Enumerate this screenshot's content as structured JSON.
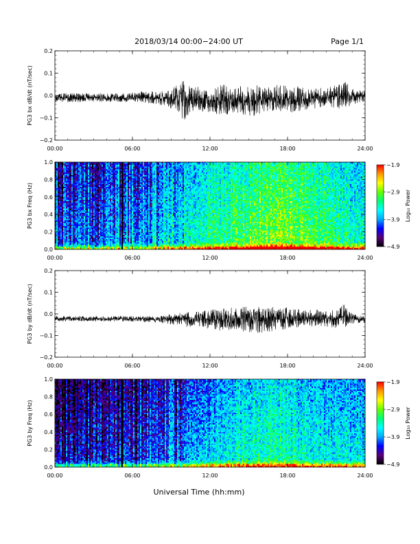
{
  "header": {
    "title": "2018/03/14  00:00−24:00 UT",
    "page_label": "Page 1/1"
  },
  "footer": {
    "xlabel": "Universal Time (hh:mm)"
  },
  "chart_data": [
    {
      "type": "line",
      "ylabel": "PG3 bx dB/dt (nT/sec)",
      "xlim": [
        0,
        24
      ],
      "ylim": [
        -0.2,
        0.2
      ],
      "yticks": [
        "0.2",
        "0.1",
        "0.0",
        "−0.1",
        "−0.2"
      ],
      "xticks": [
        "00:00",
        "06:00",
        "12:00",
        "18:00",
        "24:00"
      ],
      "envelope": {
        "hours": [
          0,
          2,
          4,
          6,
          7,
          8,
          9,
          9.5,
          10,
          10.5,
          11,
          12,
          13,
          14,
          15,
          16,
          17,
          18,
          19,
          20,
          21,
          22,
          22.5,
          23,
          24
        ],
        "upper": [
          0.01,
          0.01,
          0.01,
          0.012,
          0.02,
          0.015,
          0.03,
          0.06,
          0.07,
          0.04,
          0.04,
          0.035,
          0.05,
          0.04,
          0.05,
          0.045,
          0.05,
          0.045,
          0.04,
          0.035,
          0.035,
          0.05,
          0.06,
          0.03,
          0.02
        ],
        "lower": [
          -0.03,
          -0.03,
          -0.03,
          -0.03,
          -0.035,
          -0.04,
          -0.06,
          -0.09,
          -0.11,
          -0.08,
          -0.07,
          -0.08,
          -0.09,
          -0.08,
          -0.1,
          -0.08,
          -0.07,
          -0.08,
          -0.07,
          -0.06,
          -0.05,
          -0.06,
          -0.06,
          -0.04,
          -0.03
        ]
      }
    },
    {
      "type": "heatmap",
      "ylabel": "PG3 bx Freq (Hz)",
      "xlim": [
        0,
        24
      ],
      "ylim": [
        0,
        1
      ],
      "yticks": [
        "1.0",
        "0.8",
        "0.6",
        "0.4",
        "0.2",
        "0.0"
      ],
      "xticks": [
        "00:00",
        "06:00",
        "12:00",
        "18:00",
        "24:00"
      ],
      "colorbar": {
        "label": "Log₁₀ Power",
        "ticks": [
          "−1.9",
          "−2.9",
          "−3.9",
          "−4.9"
        ],
        "colors": [
          "#000000",
          "#5a007a",
          "#0000ff",
          "#00aaff",
          "#00ffff",
          "#00ff77",
          "#66ff00",
          "#ffff00",
          "#ff9900",
          "#ff0000"
        ]
      },
      "gap_hour": 5.2,
      "activity": {
        "hours": [
          0,
          6,
          9,
          12,
          15,
          17,
          20,
          24
        ],
        "level": [
          0.3,
          0.33,
          0.45,
          0.55,
          0.62,
          0.7,
          0.6,
          0.5
        ]
      }
    },
    {
      "type": "line",
      "ylabel": "PG3 by dB/dt (nT/sec)",
      "xlim": [
        0,
        24
      ],
      "ylim": [
        -0.2,
        0.2
      ],
      "yticks": [
        "0.2",
        "0.1",
        "0.0",
        "−0.1",
        "−0.2"
      ],
      "xticks": [
        "00:00",
        "06:00",
        "12:00",
        "18:00",
        "24:00"
      ],
      "envelope": {
        "hours": [
          0,
          2,
          4,
          6,
          8,
          9,
          10,
          11,
          12,
          13,
          14,
          15,
          16,
          17,
          18,
          19,
          20,
          21,
          22,
          22.5,
          23,
          24
        ],
        "upper": [
          -0.01,
          -0.01,
          -0.01,
          -0.01,
          -0.01,
          0.0,
          0.01,
          0.01,
          0.02,
          0.03,
          0.03,
          0.035,
          0.04,
          0.03,
          0.03,
          0.02,
          0.02,
          0.02,
          0.03,
          0.05,
          0.0,
          -0.01
        ],
        "lower": [
          -0.035,
          -0.035,
          -0.035,
          -0.035,
          -0.04,
          -0.05,
          -0.06,
          -0.06,
          -0.07,
          -0.08,
          -0.07,
          -0.09,
          -0.09,
          -0.08,
          -0.07,
          -0.06,
          -0.06,
          -0.06,
          -0.07,
          -0.06,
          -0.045,
          -0.04
        ]
      }
    },
    {
      "type": "heatmap",
      "ylabel": "PG3 by Freq (Hz)",
      "xlim": [
        0,
        24
      ],
      "ylim": [
        0,
        1
      ],
      "yticks": [
        "1.0",
        "0.8",
        "0.6",
        "0.4",
        "0.2",
        "0.0"
      ],
      "xticks": [
        "00:00",
        "06:00",
        "12:00",
        "18:00",
        "24:00"
      ],
      "colorbar": {
        "label": "Log₁₀ Power",
        "ticks": [
          "−1.9",
          "−2.9",
          "−3.9",
          "−4.9"
        ],
        "colors": [
          "#000000",
          "#5a007a",
          "#0000ff",
          "#00aaff",
          "#00ffff",
          "#00ff77",
          "#66ff00",
          "#ffff00",
          "#ff9900",
          "#ff0000"
        ]
      },
      "gap_hour": 5.2,
      "activity": {
        "hours": [
          0,
          6,
          9,
          12,
          15,
          17,
          20,
          24
        ],
        "level": [
          0.15,
          0.2,
          0.3,
          0.42,
          0.5,
          0.55,
          0.48,
          0.42
        ]
      }
    }
  ]
}
